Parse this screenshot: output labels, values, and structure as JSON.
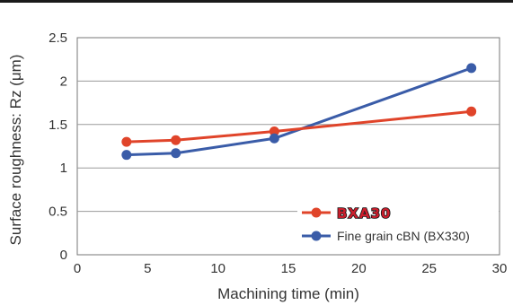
{
  "chart_data": {
    "type": "line",
    "xlabel": "Machining time (min)",
    "ylabel": "Surface roughness: Rz (μm)",
    "xlim": [
      0,
      30
    ],
    "ylim": [
      0,
      2.5
    ],
    "xticks": [
      "0",
      "5",
      "10",
      "15",
      "20",
      "25",
      "30"
    ],
    "yticks": [
      "0",
      "0.5",
      "1",
      "1.5",
      "2",
      "2.5"
    ],
    "grid": "horizontal",
    "legend_position": "bottom-right",
    "series": [
      {
        "name": "BXA30",
        "name_style": "logo",
        "color": "#e0442a",
        "x": [
          3.5,
          7,
          14,
          28
        ],
        "y": [
          1.3,
          1.32,
          1.42,
          1.65
        ]
      },
      {
        "name": "Fine grain cBN (BX330)",
        "color": "#3a5ca8",
        "x": [
          3.5,
          7,
          14,
          28
        ],
        "y": [
          1.15,
          1.17,
          1.34,
          2.15
        ]
      }
    ]
  }
}
